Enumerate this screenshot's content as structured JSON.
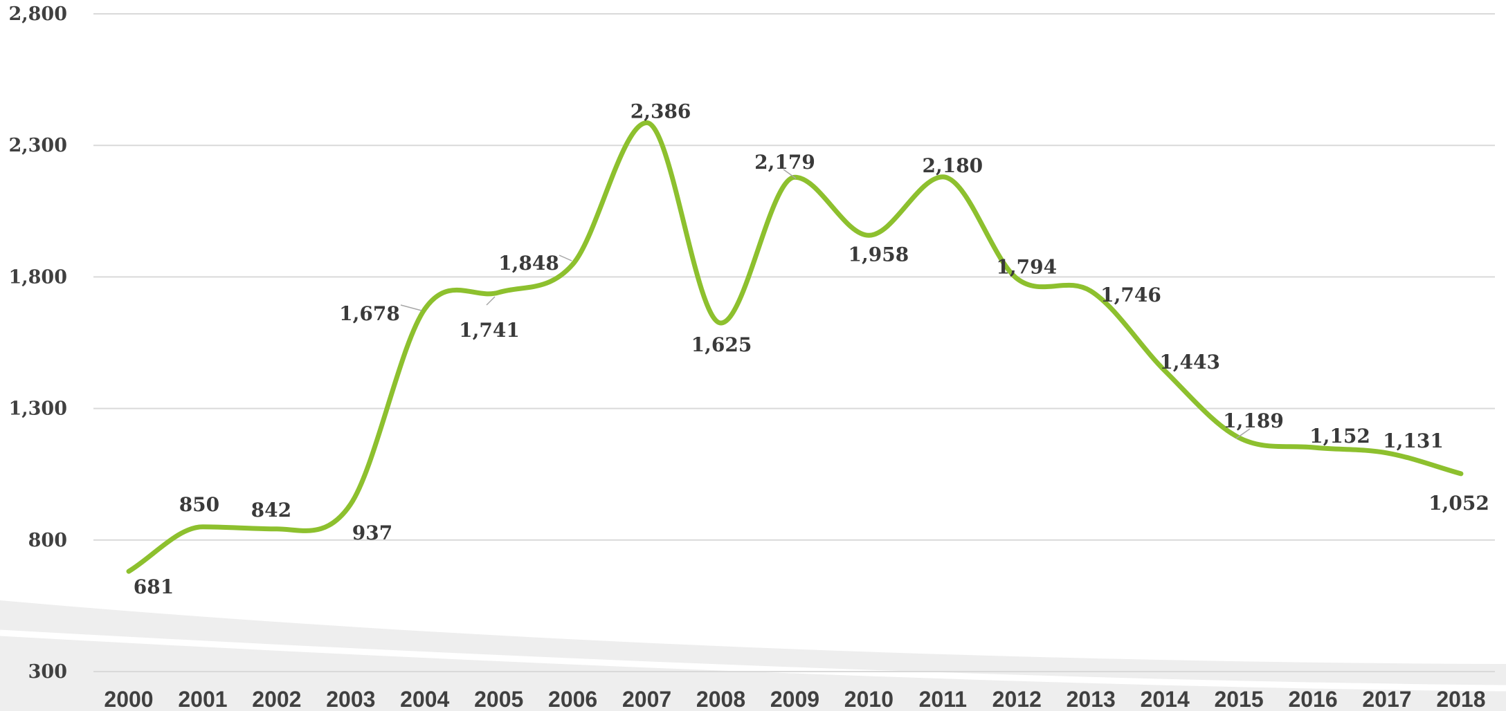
{
  "chart_data": {
    "type": "line",
    "title": "",
    "xlabel": "",
    "ylabel": "",
    "x": [
      "2000",
      "2001",
      "2002",
      "2003",
      "2004",
      "2005",
      "2006",
      "2007",
      "2008",
      "2009",
      "2010",
      "2011",
      "2012",
      "2013",
      "2014",
      "2015",
      "2016",
      "2017",
      "2018"
    ],
    "series": [
      {
        "values": [
          681,
          850,
          842,
          937,
          1678,
          1741,
          1848,
          2386,
          1625,
          2179,
          1958,
          2180,
          1794,
          1746,
          1443,
          1189,
          1152,
          1131,
          1052
        ]
      }
    ],
    "data_labels": [
      "681",
      "850",
      "842",
      "937",
      "1,678",
      "1,741",
      "1,848",
      "2,386",
      "1,625",
      "2,179",
      "1,958",
      "2,180",
      "1,794",
      "1,746",
      "1,443",
      "1,189",
      "1,152",
      "1,131",
      "1,052"
    ],
    "y_ticks": [
      "300",
      "800",
      "1,300",
      "1,800",
      "2,300",
      "2,800"
    ],
    "y_tick_values": [
      300,
      800,
      1300,
      1800,
      2300,
      2800
    ],
    "ylim": [
      300,
      2800
    ],
    "grid": true,
    "legend": "none",
    "line_style": "smooth",
    "colors": {
      "line": "#8dc02e",
      "grid": "#d9d9d9",
      "text": "#404040",
      "band": "#eeeeee"
    }
  }
}
